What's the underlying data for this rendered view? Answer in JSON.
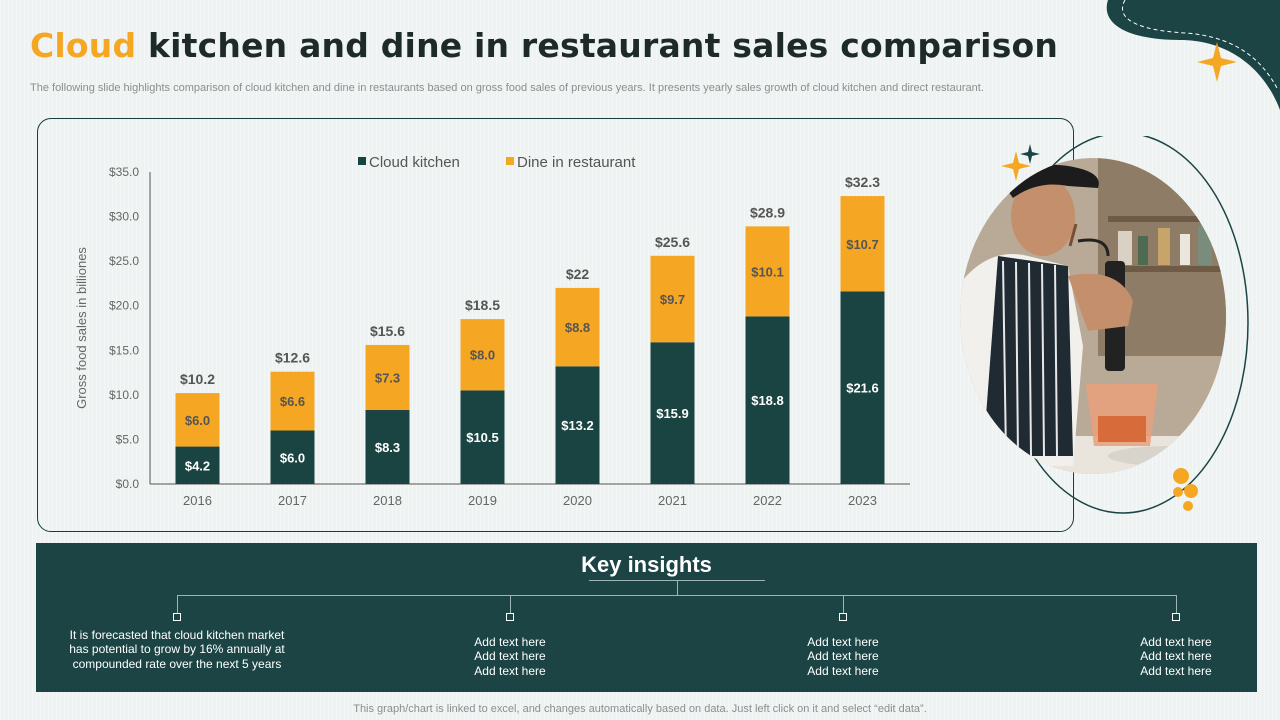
{
  "title": {
    "accent": "Cloud",
    "rest": " kitchen and dine in restaurant sales comparison"
  },
  "subtitle": "The following slide highlights comparison of cloud kitchen and dine in restaurants based on gross food sales of previous years. It presents yearly sales growth of cloud kitchen and direct restaurant.",
  "colors": {
    "cloud": "#1a4442",
    "dine": "#f5a623",
    "accent": "#f5a623",
    "dark": "#1c4444"
  },
  "chart_data": {
    "type": "bar",
    "stacked": true,
    "categories": [
      "2016",
      "2017",
      "2018",
      "2019",
      "2020",
      "2021",
      "2022",
      "2023"
    ],
    "series": [
      {
        "name": "Cloud kitchen",
        "values": [
          4.2,
          6.0,
          8.3,
          10.5,
          13.2,
          15.9,
          18.8,
          21.6
        ],
        "labels": [
          "$4.2",
          "$6.0",
          "$8.3",
          "$10.5",
          "$13.2",
          "$15.9",
          "$18.8",
          "$21.6"
        ]
      },
      {
        "name": "Dine in restaurant",
        "values": [
          6.0,
          6.6,
          7.3,
          8.0,
          8.8,
          9.7,
          10.1,
          10.7
        ],
        "labels": [
          "$6.0",
          "$6.6",
          "$7.3",
          "$8.0",
          "$8.8",
          "$9.7",
          "$10.1",
          "$10.7"
        ]
      }
    ],
    "totals": [
      "$10.2",
      "$12.6",
      "$15.6",
      "$18.5",
      "$22",
      "$25.6",
      "$28.9",
      "$32.3"
    ],
    "ylabel": "Gross food sales  in billiones",
    "xlabel": "",
    "ylim": [
      0,
      35
    ],
    "yticks": [
      0,
      5,
      10,
      15,
      20,
      25,
      30,
      35
    ],
    "ytick_labels": [
      "$0.0",
      "$5.0",
      "$10.0",
      "$15.0",
      "$20.0",
      "$25.0",
      "$30.0",
      "$35.0"
    ],
    "legend_position": "top-center"
  },
  "insights": {
    "title": "Key insights",
    "items": [
      "It is forecasted that cloud kitchen market has potential to grow by 16% annually at compounded rate over the next 5 years",
      "Add text here\nAdd text here\nAdd text here",
      "Add text here\nAdd text here\nAdd text here",
      "Add text here\nAdd text here\nAdd text here"
    ]
  },
  "footer": "This graph/chart is linked to excel,  and changes automatically based on data. Just left click on it and select “edit data”."
}
